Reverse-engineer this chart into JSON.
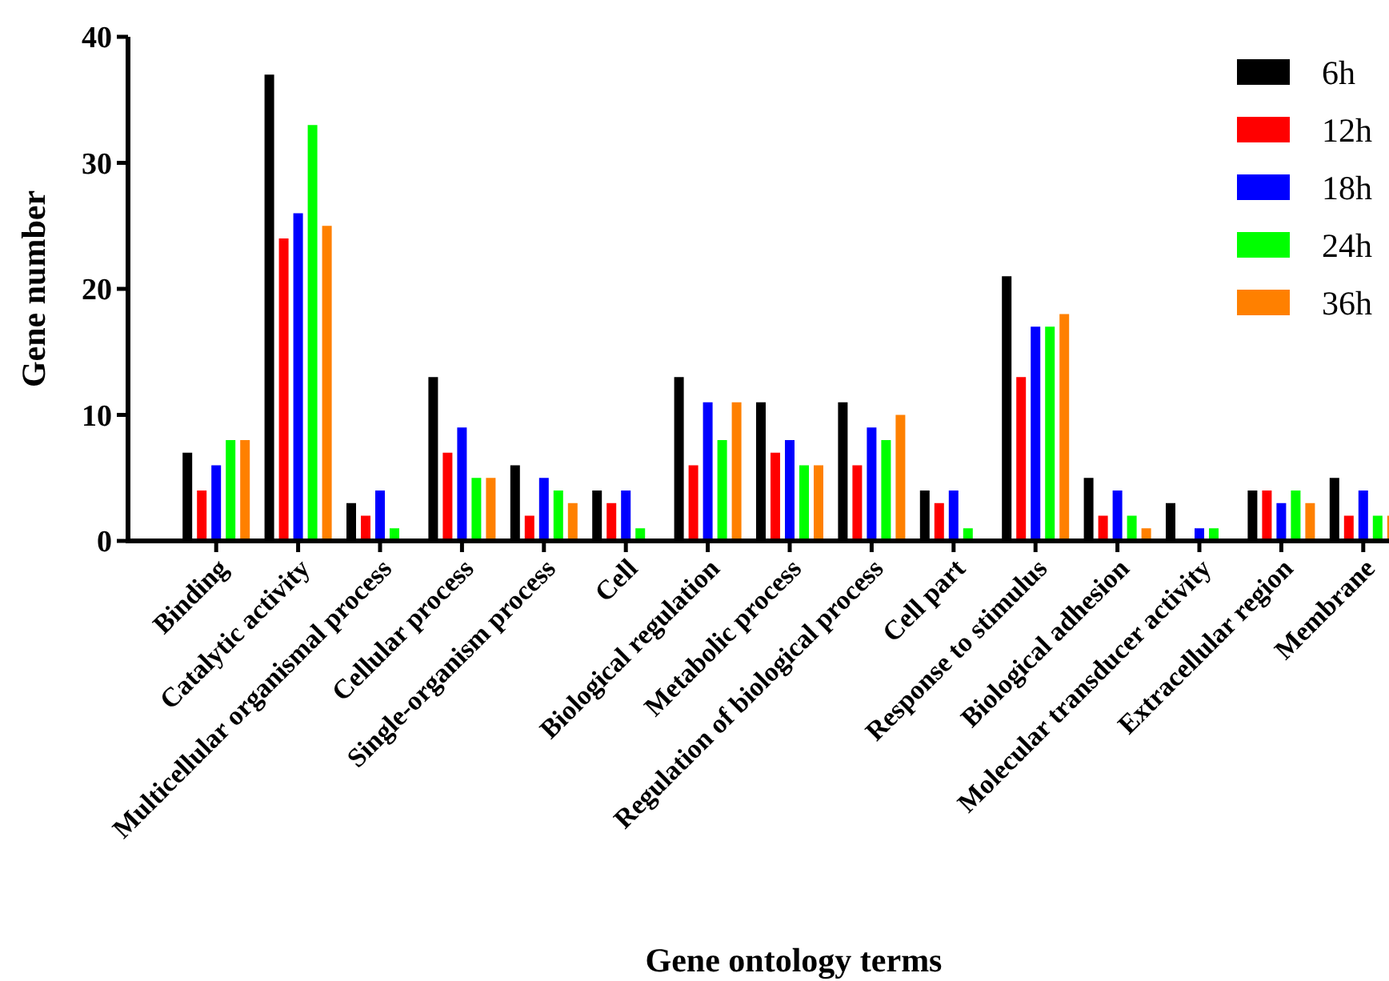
{
  "chart_data": {
    "type": "bar",
    "xlabel": "Gene ontology terms",
    "ylabel": "Gene number",
    "categories": [
      "Binding",
      "Catalytic activity",
      "Multicellular organismal process",
      "Cellular process",
      "Single-organism process",
      "Cell",
      "Biological regulation",
      "Metabolic process",
      "Regulation of biological process",
      "Cell part",
      "Response to stimulus",
      "Biological adhesion",
      "Molecular transducer activity",
      "Extracellular region",
      "Membrane"
    ],
    "series": [
      {
        "name": "6h",
        "color": "#000000",
        "values": [
          7,
          37,
          3,
          13,
          6,
          4,
          13,
          11,
          11,
          4,
          21,
          5,
          3,
          4,
          5
        ]
      },
      {
        "name": "12h",
        "color": "#ff0000",
        "values": [
          4,
          24,
          2,
          7,
          2,
          3,
          6,
          7,
          6,
          3,
          13,
          2,
          0,
          4,
          2
        ]
      },
      {
        "name": "18h",
        "color": "#0000ff",
        "values": [
          6,
          26,
          4,
          9,
          5,
          4,
          11,
          8,
          9,
          4,
          17,
          4,
          1,
          3,
          4
        ]
      },
      {
        "name": "24h",
        "color": "#00ff00",
        "values": [
          8,
          33,
          1,
          5,
          4,
          1,
          8,
          6,
          8,
          1,
          17,
          2,
          1,
          4,
          2
        ]
      },
      {
        "name": "36h",
        "color": "#ff8000",
        "values": [
          8,
          25,
          0,
          5,
          3,
          0,
          11,
          6,
          10,
          0,
          18,
          1,
          0,
          3,
          2
        ]
      }
    ],
    "ylim": [
      0,
      40
    ],
    "yticks": [
      0,
      10,
      20,
      30,
      40
    ],
    "legend": "top right"
  }
}
